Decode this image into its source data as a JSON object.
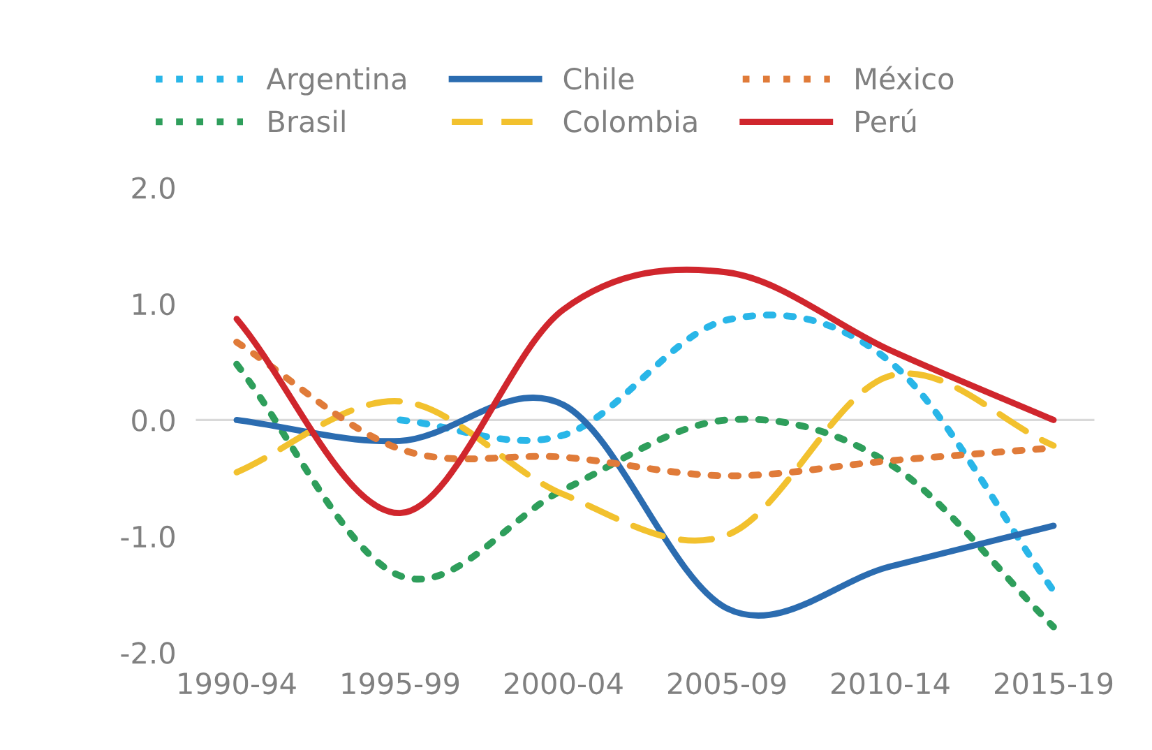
{
  "chart_data": {
    "type": "line",
    "categories": [
      "1990-94",
      "1995-99",
      "2000-04",
      "2005-09",
      "2010-14",
      "2015-19"
    ],
    "series": [
      {
        "name": "Argentina",
        "color": "#29b6e8",
        "line_style": "dotted",
        "values": [
          null,
          0.0,
          -0.13,
          0.86,
          0.5,
          -1.47
        ]
      },
      {
        "name": "Brasil",
        "color": "#2e9e5b",
        "line_style": "dotted",
        "values": [
          0.48,
          -1.34,
          -0.6,
          0.0,
          -0.38,
          -1.78
        ]
      },
      {
        "name": "Chile",
        "color": "#2b6cb0",
        "line_style": "solid",
        "values": [
          0.0,
          -0.18,
          0.13,
          -1.62,
          -1.26,
          -0.91
        ]
      },
      {
        "name": "Colombia",
        "color": "#f2c12e",
        "line_style": "dashed",
        "values": [
          -0.45,
          0.16,
          -0.64,
          -0.99,
          0.38,
          -0.22
        ]
      },
      {
        "name": "México",
        "color": "#e07b39",
        "line_style": "dotted",
        "values": [
          0.67,
          -0.25,
          -0.32,
          -0.48,
          -0.35,
          -0.24
        ]
      },
      {
        "name": "Perú",
        "color": "#d0262d",
        "line_style": "solid",
        "values": [
          0.87,
          -0.8,
          0.95,
          1.27,
          0.6,
          0.0
        ]
      }
    ],
    "ylim": [
      -2,
      2
    ],
    "yticks": [
      {
        "value": -2,
        "label": "-2.0"
      },
      {
        "value": -1,
        "label": "-1.0"
      },
      {
        "value": 0,
        "label": "0.0"
      },
      {
        "value": 1,
        "label": "1.0"
      },
      {
        "value": 2,
        "label": "2.0"
      }
    ],
    "ref_lines": [
      {
        "axis": "y",
        "value": 0,
        "color": "#d9d9d9"
      }
    ],
    "grid": false,
    "legend": "top",
    "marker": "none"
  }
}
